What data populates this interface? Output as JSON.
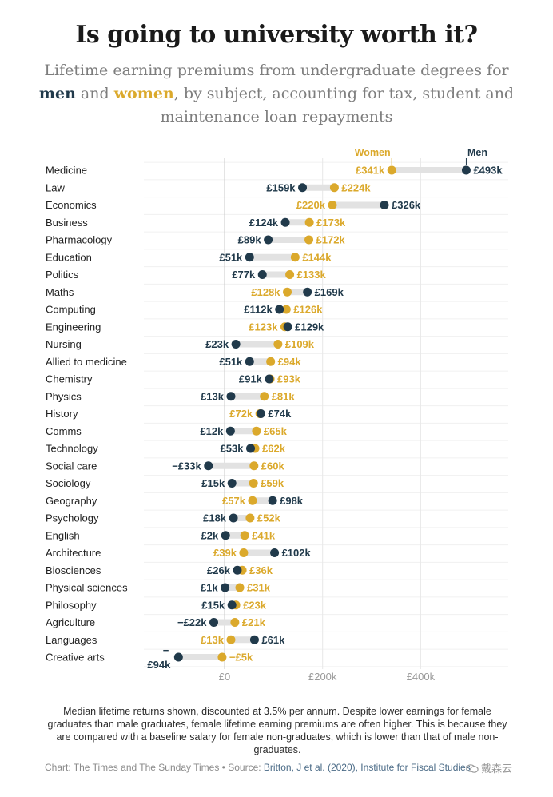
{
  "title": "Is going to university worth it?",
  "subtitle": {
    "part1": "Lifetime earning premiums from undergraduate degrees for ",
    "men": "men",
    "part2": " and ",
    "women": "women",
    "part3": ", by subject, accounting for tax, student and maintenance loan repayments"
  },
  "colors": {
    "men": "#213a4b",
    "women": "#dba92c",
    "range_bar": "#e2e2e2",
    "grid": "#e8e8e8",
    "zero_line": "#c8c8c8"
  },
  "chart_data": {
    "type": "dumbbell",
    "unit": "£k",
    "xlim": [
      -100,
      540
    ],
    "x_ticks": [
      {
        "value": 0,
        "label": "£0"
      },
      {
        "value": 200,
        "label": "£200k"
      },
      {
        "value": 400,
        "label": "£400k"
      }
    ],
    "series_labels": {
      "women": "Women",
      "men": "Men"
    },
    "rows": [
      {
        "subject": "Medicine",
        "men": 493,
        "women": 341,
        "men_label": "£493k",
        "women_label": "£341k"
      },
      {
        "subject": "Law",
        "men": 159,
        "women": 224,
        "men_label": "£159k",
        "women_label": "£224k"
      },
      {
        "subject": "Economics",
        "men": 326,
        "women": 220,
        "men_label": "£326k",
        "women_label": "£220k"
      },
      {
        "subject": "Business",
        "men": 124,
        "women": 173,
        "men_label": "£124k",
        "women_label": "£173k"
      },
      {
        "subject": "Pharmacology",
        "men": 89,
        "women": 172,
        "men_label": "£89k",
        "women_label": "£172k"
      },
      {
        "subject": "Education",
        "men": 51,
        "women": 144,
        "men_label": "£51k",
        "women_label": "£144k"
      },
      {
        "subject": "Politics",
        "men": 77,
        "women": 133,
        "men_label": "£77k",
        "women_label": "£133k"
      },
      {
        "subject": "Maths",
        "men": 169,
        "women": 128,
        "men_label": "£169k",
        "women_label": "£128k"
      },
      {
        "subject": "Computing",
        "men": 112,
        "women": 126,
        "men_label": "£112k",
        "women_label": "£126k"
      },
      {
        "subject": "Engineering",
        "men": 129,
        "women": 123,
        "men_label": "£129k",
        "women_label": "£123k"
      },
      {
        "subject": "Nursing",
        "men": 23,
        "women": 109,
        "men_label": "£23k",
        "women_label": "£109k"
      },
      {
        "subject": "Allied to medicine",
        "men": 51,
        "women": 94,
        "men_label": "£51k",
        "women_label": "£94k"
      },
      {
        "subject": "Chemistry",
        "men": 91,
        "women": 93,
        "men_label": "£91k",
        "women_label": "£93k"
      },
      {
        "subject": "Physics",
        "men": 13,
        "women": 81,
        "men_label": "£13k",
        "women_label": "£81k"
      },
      {
        "subject": "History",
        "men": 74,
        "women": 72,
        "men_label": "£74k",
        "women_label": "£72k"
      },
      {
        "subject": "Comms",
        "men": 12,
        "women": 65,
        "men_label": "£12k",
        "women_label": "£65k"
      },
      {
        "subject": "Technology",
        "men": 53,
        "women": 62,
        "men_label": "£53k",
        "women_label": "£62k"
      },
      {
        "subject": "Social care",
        "men": -33,
        "women": 60,
        "men_label": "−£33k",
        "women_label": "£60k"
      },
      {
        "subject": "Sociology",
        "men": 15,
        "women": 59,
        "men_label": "£15k",
        "women_label": "£59k"
      },
      {
        "subject": "Geography",
        "men": 98,
        "women": 57,
        "men_label": "£98k",
        "women_label": "£57k"
      },
      {
        "subject": "Psychology",
        "men": 18,
        "women": 52,
        "men_label": "£18k",
        "women_label": "£52k"
      },
      {
        "subject": "English",
        "men": 2,
        "women": 41,
        "men_label": "£2k",
        "women_label": "£41k"
      },
      {
        "subject": "Architecture",
        "men": 102,
        "women": 39,
        "men_label": "£102k",
        "women_label": "£39k"
      },
      {
        "subject": "Biosciences",
        "men": 26,
        "women": 36,
        "men_label": "£26k",
        "women_label": "£36k"
      },
      {
        "subject": "Physical sciences",
        "men": 1,
        "women": 31,
        "men_label": "£1k",
        "women_label": "£31k"
      },
      {
        "subject": "Philosophy",
        "men": 15,
        "women": 23,
        "men_label": "£15k",
        "women_label": "£23k"
      },
      {
        "subject": "Agriculture",
        "men": -22,
        "women": 21,
        "men_label": "−£22k",
        "women_label": "£21k"
      },
      {
        "subject": "Languages",
        "men": 61,
        "women": 13,
        "men_label": "£61k",
        "women_label": "£13k"
      },
      {
        "subject": "Creative arts",
        "men": -94,
        "women": -5,
        "men_label": "−£94k",
        "women_label": "−£5k"
      }
    ]
  },
  "footnote": "Median lifetime returns shown, discounted at 3.5% per annum. Despite lower earnings for female graduates than male graduates, female lifetime earning premiums are often higher. This is because they are compared with a baseline salary for female non-graduates, which is lower than that of male non-graduates.",
  "source": {
    "chart_credit": "Chart: The Times and The Sunday Times",
    "separator": " • ",
    "source_label": "Source: ",
    "source_link": "Britton, J et al. (2020), Institute for Fiscal Studies"
  },
  "watermark": {
    "icon": "wechat-icon",
    "text": "戴森云"
  }
}
